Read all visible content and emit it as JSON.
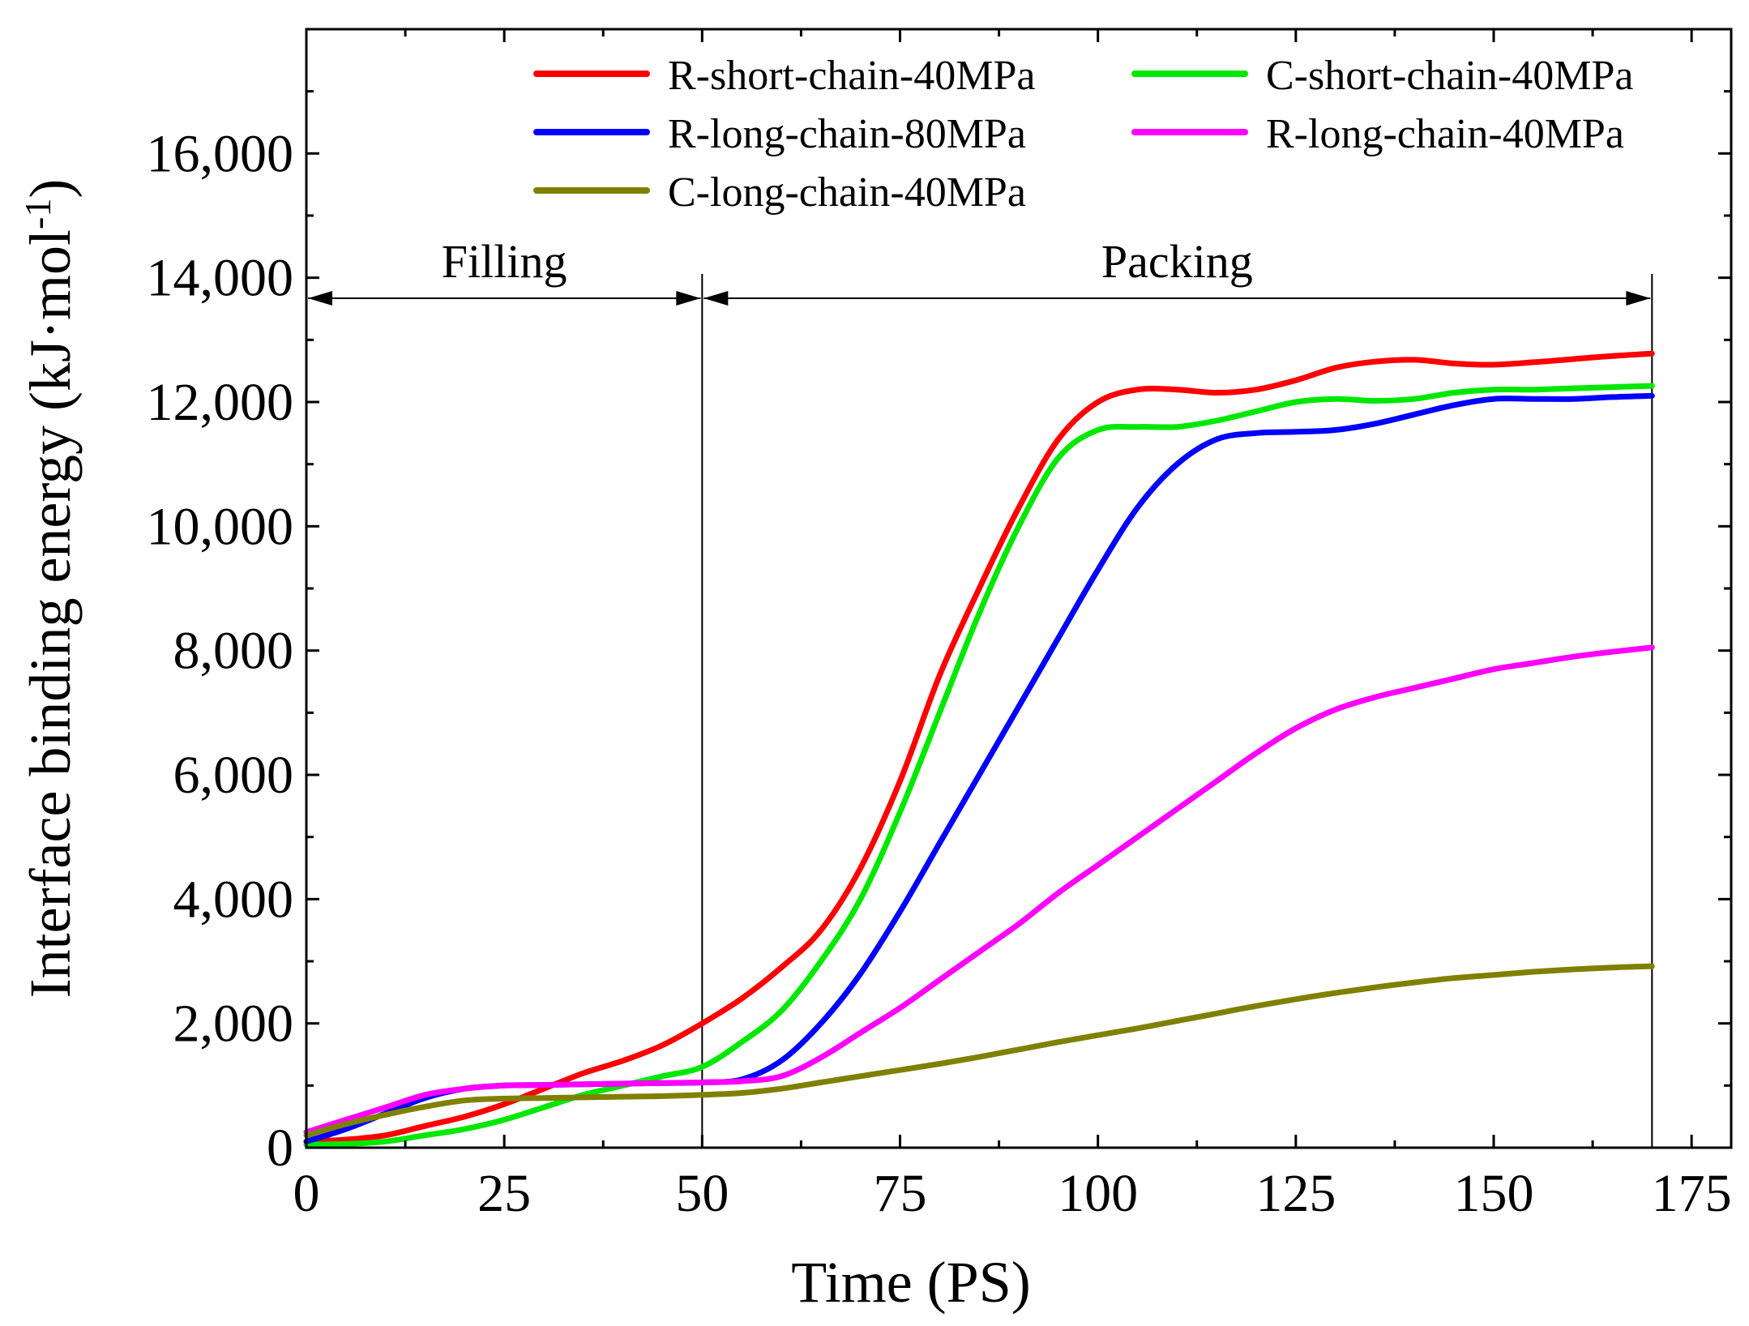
{
  "chart_data": {
    "type": "line",
    "title": "",
    "xlabel": "Time (PS)",
    "ylabel": "Interface binding energy (kJ·mol",
    "ylabel_sup": "-1",
    "ylabel_close": ")",
    "xlim": [
      0,
      180
    ],
    "ylim": [
      0,
      18000
    ],
    "xticks": [
      0,
      25,
      50,
      75,
      100,
      125,
      150,
      175
    ],
    "xtick_labels": [
      "0",
      "25",
      "50",
      "75",
      "100",
      "125",
      "150",
      "175"
    ],
    "yticks": [
      0,
      2000,
      4000,
      6000,
      8000,
      10000,
      12000,
      14000,
      16000
    ],
    "ytick_labels": [
      "0",
      "2,000",
      "4,000",
      "6,000",
      "8,000",
      "10,000",
      "12,000",
      "14,000",
      "16,000"
    ],
    "grid": false,
    "legend_position": "top",
    "phases": [
      {
        "label": "Filling",
        "start": 0,
        "end": 50
      },
      {
        "label": "Packing",
        "start": 50,
        "end": 170
      }
    ],
    "series": [
      {
        "name": "R-short-chain-40MPa",
        "color": "#ff0000",
        "x": [
          0,
          5,
          10,
          15,
          20,
          25,
          30,
          35,
          40,
          45,
          50,
          55,
          60,
          65,
          70,
          75,
          80,
          85,
          90,
          95,
          100,
          105,
          110,
          115,
          120,
          125,
          130,
          135,
          140,
          145,
          150,
          155,
          160,
          165,
          170
        ],
        "y": [
          100,
          130,
          200,
          350,
          500,
          700,
          950,
          1200,
          1400,
          1650,
          2000,
          2400,
          2900,
          3500,
          4500,
          5900,
          7600,
          9000,
          10300,
          11400,
          12000,
          12200,
          12200,
          12150,
          12200,
          12350,
          12550,
          12650,
          12680,
          12620,
          12600,
          12640,
          12690,
          12740,
          12780
        ]
      },
      {
        "name": "C-short-chain-40MPa",
        "color": "#00e800",
        "x": [
          0,
          5,
          10,
          15,
          20,
          25,
          30,
          35,
          40,
          45,
          50,
          55,
          60,
          65,
          70,
          75,
          80,
          85,
          90,
          95,
          100,
          105,
          110,
          115,
          120,
          125,
          130,
          135,
          140,
          145,
          150,
          155,
          160,
          165,
          170
        ],
        "y": [
          50,
          60,
          100,
          200,
          300,
          450,
          650,
          850,
          1000,
          1150,
          1300,
          1700,
          2200,
          3000,
          4000,
          5400,
          7000,
          8600,
          10000,
          11100,
          11550,
          11600,
          11600,
          11700,
          11850,
          12000,
          12050,
          12020,
          12050,
          12150,
          12200,
          12200,
          12220,
          12240,
          12260
        ]
      },
      {
        "name": "R-long-chain-80MPa",
        "color": "#0000ff",
        "x": [
          0,
          5,
          10,
          15,
          20,
          25,
          30,
          35,
          40,
          45,
          50,
          55,
          60,
          65,
          70,
          75,
          80,
          85,
          90,
          95,
          100,
          105,
          110,
          115,
          120,
          125,
          130,
          135,
          140,
          145,
          150,
          155,
          160,
          165,
          170
        ],
        "y": [
          100,
          300,
          550,
          800,
          950,
          1000,
          1010,
          1020,
          1030,
          1040,
          1050,
          1100,
          1400,
          2000,
          2800,
          3800,
          4900,
          6000,
          7100,
          8200,
          9300,
          10300,
          11000,
          11400,
          11500,
          11520,
          11550,
          11650,
          11800,
          11950,
          12050,
          12050,
          12050,
          12080,
          12100
        ]
      },
      {
        "name": "R-long-chain-40MPa",
        "color": "#ff00ff",
        "x": [
          0,
          5,
          10,
          15,
          20,
          25,
          30,
          35,
          40,
          45,
          50,
          55,
          60,
          65,
          70,
          75,
          80,
          85,
          90,
          95,
          100,
          105,
          110,
          115,
          120,
          125,
          130,
          135,
          140,
          145,
          150,
          155,
          160,
          165,
          170
        ],
        "y": [
          250,
          450,
          650,
          850,
          950,
          1000,
          1010,
          1020,
          1030,
          1040,
          1050,
          1070,
          1150,
          1450,
          1850,
          2250,
          2700,
          3150,
          3600,
          4100,
          4550,
          5000,
          5450,
          5900,
          6350,
          6750,
          7050,
          7250,
          7400,
          7550,
          7700,
          7800,
          7900,
          7980,
          8050
        ]
      },
      {
        "name": "C-long-chain-40MPa",
        "color": "#808000",
        "x": [
          0,
          5,
          10,
          15,
          20,
          25,
          30,
          35,
          40,
          45,
          50,
          55,
          60,
          65,
          70,
          75,
          80,
          85,
          90,
          95,
          100,
          105,
          110,
          115,
          120,
          125,
          130,
          135,
          140,
          145,
          150,
          155,
          160,
          165,
          170
        ],
        "y": [
          200,
          380,
          530,
          660,
          760,
          790,
          800,
          810,
          820,
          830,
          850,
          880,
          950,
          1050,
          1150,
          1250,
          1350,
          1460,
          1580,
          1700,
          1810,
          1920,
          2040,
          2160,
          2280,
          2390,
          2490,
          2580,
          2660,
          2730,
          2780,
          2830,
          2870,
          2900,
          2920
        ]
      }
    ]
  }
}
